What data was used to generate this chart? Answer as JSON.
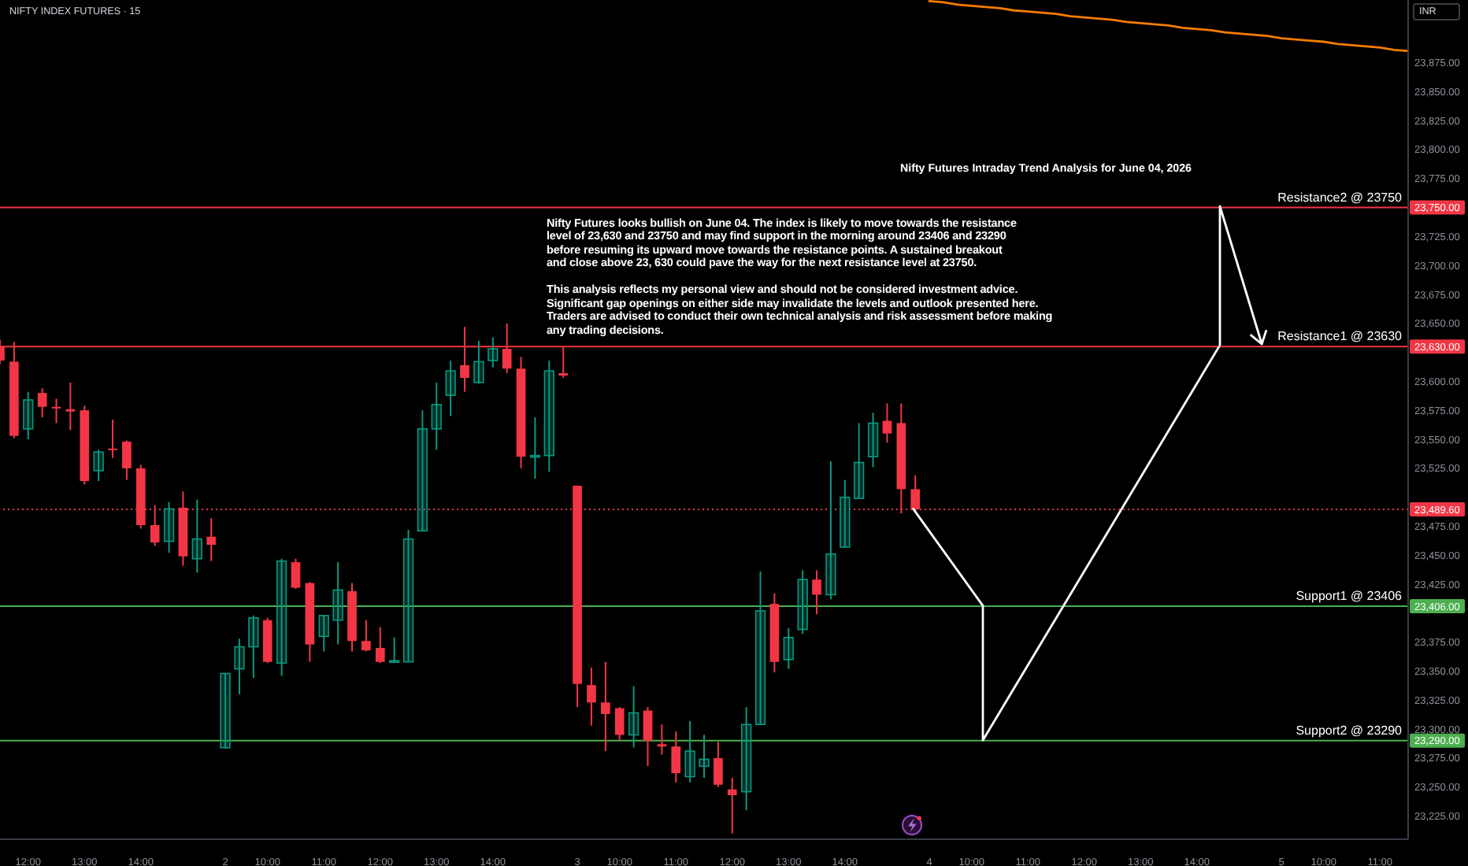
{
  "chart_data": {
    "type": "candlestick",
    "title": "Nifty Futures Intraday Trend Analysis for June 04, 2026",
    "subtitle": "NIFTY INDEX FUTURES · 15",
    "ylabel": "INR",
    "categories": [
      null,
      null,
      "12:00",
      null,
      null,
      null,
      "13:00",
      null,
      null,
      null,
      "14:00",
      null,
      null,
      null,
      null,
      null,
      "2",
      null,
      null,
      "10:00",
      null,
      null,
      null,
      "11:00",
      null,
      null,
      null,
      "12:00",
      null,
      null,
      null,
      "13:00",
      null,
      null,
      null,
      "14:00",
      null,
      null,
      null,
      null,
      null,
      "3",
      null,
      null,
      "10:00",
      null,
      null,
      null,
      "11:00",
      null,
      null,
      null,
      "12:00",
      null,
      null,
      null,
      "13:00",
      null,
      null,
      null,
      "14:00",
      null,
      null,
      null,
      null,
      null,
      "4",
      null,
      null,
      "10:00",
      null,
      null,
      null,
      "11:00",
      null,
      null,
      null,
      "12:00",
      null,
      null,
      null,
      "13:00",
      null,
      null,
      null,
      "14:00",
      null,
      null,
      null,
      null,
      null,
      "5",
      null,
      null,
      "10:00",
      null,
      null,
      null,
      "11:00",
      null,
      null
    ],
    "ohlc": [
      [
        23630,
        23636,
        23615,
        23618
      ],
      [
        23617,
        23634,
        23551,
        23553
      ],
      [
        23559,
        23591,
        23550,
        23584
      ],
      [
        23590,
        23594,
        23569,
        23578
      ],
      [
        23578,
        23585,
        23564,
        23577
      ],
      [
        23576,
        23599,
        23558,
        23574
      ],
      [
        23575,
        23579,
        23511,
        23514
      ],
      [
        23523,
        23541,
        23514,
        23539
      ],
      [
        23542,
        23567,
        23534,
        23541
      ],
      [
        23548,
        23549,
        23515,
        23525
      ],
      [
        23525,
        23528,
        23473,
        23476
      ],
      [
        23476,
        23493,
        23458,
        23461
      ],
      [
        23462,
        23496,
        23452,
        23490
      ],
      [
        23491,
        23505,
        23441,
        23449
      ],
      [
        23447,
        23498,
        23435,
        23464
      ],
      [
        23466,
        23482,
        23445,
        23459
      ],
      [
        23284,
        23348,
        23283,
        23348
      ],
      [
        23352,
        23378,
        23330,
        23371
      ],
      [
        23371,
        23398,
        23344,
        23396
      ],
      [
        23394,
        23396,
        23357,
        23358
      ],
      [
        23357,
        23447,
        23346,
        23445
      ],
      [
        23444,
        23447,
        23421,
        23422
      ],
      [
        23426,
        23427,
        23358,
        23373
      ],
      [
        23380,
        23398,
        23367,
        23398
      ],
      [
        23394,
        23444,
        23373,
        23420
      ],
      [
        23419,
        23426,
        23367,
        23376
      ],
      [
        23376,
        23394,
        23367,
        23368
      ],
      [
        23370,
        23388,
        23357,
        23358
      ],
      [
        23358,
        23379,
        23357,
        23359
      ],
      [
        23358,
        23472,
        23358,
        23464
      ],
      [
        23471,
        23575,
        23471,
        23559
      ],
      [
        23559,
        23599,
        23541,
        23580
      ],
      [
        23588,
        23618,
        23570,
        23609
      ],
      [
        23614,
        23647,
        23591,
        23603
      ],
      [
        23599,
        23635,
        23598,
        23617
      ],
      [
        23618,
        23638,
        23612,
        23628
      ],
      [
        23628,
        23650,
        23607,
        23611
      ],
      [
        23611,
        23621,
        23525,
        23535
      ],
      [
        23535,
        23569,
        23516,
        23536
      ],
      [
        23536,
        23618,
        23522,
        23609
      ],
      [
        23607,
        23630,
        23603,
        23605
      ],
      [
        23510,
        23510,
        23319,
        23339
      ],
      [
        23338,
        23353,
        23303,
        23323
      ],
      [
        23323,
        23358,
        23281,
        23313
      ],
      [
        23318,
        23319,
        23290,
        23295
      ],
      [
        23295,
        23337,
        23284,
        23314
      ],
      [
        23316,
        23319,
        23268,
        23290
      ],
      [
        23287,
        23304,
        23278,
        23285
      ],
      [
        23285,
        23298,
        23254,
        23262
      ],
      [
        23259,
        23307,
        23254,
        23281
      ],
      [
        23268,
        23295,
        23258,
        23274
      ],
      [
        23275,
        23289,
        23250,
        23252
      ],
      [
        23248,
        23258,
        23210,
        23243
      ],
      [
        23246,
        23319,
        23230,
        23304
      ],
      [
        23304,
        23436,
        23304,
        23402
      ],
      [
        23408,
        23417,
        23349,
        23358
      ],
      [
        23360,
        23387,
        23352,
        23379
      ],
      [
        23386,
        23437,
        23382,
        23429
      ],
      [
        23429,
        23437,
        23399,
        23416
      ],
      [
        23416,
        23531,
        23412,
        23451
      ],
      [
        23457,
        23515,
        23457,
        23500
      ],
      [
        23499,
        23564,
        23499,
        23530
      ],
      [
        23535,
        23573,
        23526,
        23564
      ],
      [
        23566,
        23581,
        23547,
        23555
      ],
      [
        23564,
        23581,
        23486,
        23507
      ],
      [
        23507,
        23519,
        23488,
        23489.6
      ],
      null,
      null,
      null,
      null,
      null,
      null,
      null,
      null,
      null,
      null,
      null,
      null,
      null,
      null,
      null,
      null,
      null,
      null,
      null,
      null,
      null,
      null,
      null,
      null,
      null,
      null,
      null,
      null,
      null,
      null,
      null,
      null,
      null,
      null,
      null
    ],
    "colors": [
      "#f23645",
      "#f23645",
      "#089981",
      "#f23645",
      "#f23645",
      "#f23645",
      "#f23645",
      "#089981",
      "#f23645",
      "#f23645",
      "#f23645",
      "#f23645",
      "#089981",
      "#f23645",
      "#089981",
      "#f23645",
      "#089981",
      "#089981",
      "#089981",
      "#f23645",
      "#089981",
      "#f23645",
      "#f23645",
      "#089981",
      "#089981",
      "#f23645",
      "#f23645",
      "#f23645",
      "#089981",
      "#089981",
      "#089981",
      "#089981",
      "#089981",
      "#f23645",
      "#089981",
      "#089981",
      "#f23645",
      "#f23645",
      "#089981",
      "#089981",
      "#f23645",
      "#f23645",
      "#f23645",
      "#f23645",
      "#f23645",
      "#089981",
      "#f23645",
      "#f23645",
      "#f23645",
      "#089981",
      "#089981",
      "#f23645",
      "#f23645",
      "#089981",
      "#089981",
      "#f23645",
      "#089981",
      "#089981",
      "#f23645",
      "#089981",
      "#089981",
      "#089981",
      "#089981",
      "#f23645",
      "#f23645",
      "#f23645",
      null,
      null,
      null,
      null,
      null,
      null,
      null,
      null,
      null,
      null,
      null,
      null,
      null,
      null,
      null,
      null,
      null,
      null,
      null,
      null,
      null,
      null,
      null,
      null,
      null,
      null,
      null,
      null,
      null,
      null,
      null,
      null,
      null,
      null,
      null
    ],
    "series": [
      {
        "type": "line",
        "color": "#f57c00",
        "values": [
          null,
          null,
          null,
          null,
          null,
          null,
          null,
          null,
          null,
          null,
          null,
          null,
          null,
          null,
          null,
          null,
          null,
          null,
          null,
          null,
          null,
          null,
          null,
          null,
          null,
          null,
          null,
          null,
          null,
          null,
          null,
          null,
          null,
          null,
          null,
          null,
          null,
          null,
          null,
          null,
          null,
          null,
          null,
          null,
          null,
          null,
          null,
          null,
          null,
          null,
          null,
          null,
          null,
          null,
          null,
          null,
          null,
          null,
          null,
          null,
          null,
          null,
          null,
          null,
          null,
          null,
          23928,
          23927,
          23925,
          23924,
          23923,
          23922,
          23920,
          23919,
          23918,
          23917,
          23915,
          23914,
          23913,
          23912,
          23910,
          23909,
          23908,
          23907,
          23905,
          23904,
          23903,
          23901,
          23900,
          23899,
          23898,
          23896,
          23895,
          23894,
          23893,
          23891,
          23890,
          23889,
          23888,
          23886,
          23885
        ]
      }
    ],
    "ylim": [
      23205,
      23929
    ],
    "yticks": [
      {
        "value": 23225,
        "label": "23,225.00"
      },
      {
        "value": 23250,
        "label": "23,250.00"
      },
      {
        "value": 23275,
        "label": "23,275.00"
      },
      {
        "value": 23290,
        "label": "23,290.00"
      },
      {
        "value": 23300,
        "label": "23,300.00"
      },
      {
        "value": 23325,
        "label": "23,325.00"
      },
      {
        "value": 23350,
        "label": "23,350.00"
      },
      {
        "value": 23375,
        "label": "23,375.00"
      },
      {
        "value": 23406,
        "label": "23,406.00"
      },
      {
        "value": 23425,
        "label": "23,425.00"
      },
      {
        "value": 23450,
        "label": "23,450.00"
      },
      {
        "value": 23475,
        "label": "23,475.00"
      },
      {
        "value": 23489.6,
        "label": "23,489.60"
      },
      {
        "value": 23525,
        "label": "23,525.00"
      },
      {
        "value": 23550,
        "label": "23,550.00"
      },
      {
        "value": 23575,
        "label": "23,575.00"
      },
      {
        "value": 23600,
        "label": "23,600.00"
      },
      {
        "value": 23630,
        "label": "23,630.00"
      },
      {
        "value": 23650,
        "label": "23,650.00"
      },
      {
        "value": 23675,
        "label": "23,675.00"
      },
      {
        "value": 23700,
        "label": "23,700.00"
      },
      {
        "value": 23725,
        "label": "23,725.00"
      },
      {
        "value": 23750,
        "label": "23,750.00"
      },
      {
        "value": 23775,
        "label": "23,775.00"
      },
      {
        "value": 23800,
        "label": "23,800.00"
      },
      {
        "value": 23825,
        "label": "23,825.00"
      },
      {
        "value": 23850,
        "label": "23,850.00"
      },
      {
        "value": 23875,
        "label": "23,875.00"
      }
    ],
    "ref_lines": [
      {
        "axis": "y",
        "value": 23750,
        "label": "Resistance2 @ 23750",
        "color": "#f23645"
      },
      {
        "axis": "y",
        "value": 23630,
        "label": "Resistance1 @ 23630",
        "color": "#f23645"
      },
      {
        "axis": "y",
        "value": 23489.6,
        "color": "#f23645",
        "line_style": "dotted"
      },
      {
        "axis": "y",
        "value": 23406,
        "label": "Support1 @ 23406",
        "color": "#4caf50"
      },
      {
        "axis": "y",
        "value": 23290,
        "label": "Support2 @ 23290",
        "color": "#4caf50"
      }
    ],
    "annotations": [
      "Nifty Futures looks bullish on June 04. The index is likely to move towards the resistance\nlevel of 23,630 and 23750 and may find support in the morning around 23406 and 23290\nbefore resuming its upward move towards the resistance points. A sustained breakout\nand close above 23, 630 could pave the way for the next resistance level at 23750.",
      "This analysis reflects my personal view and should not be considered investment advice.\nSignificant gap openings on either side may invalidate the levels and outlook presented here.\nTraders are advised to conduct their own technical analysis and risk assessment before making\nany trading decisions."
    ]
  }
}
